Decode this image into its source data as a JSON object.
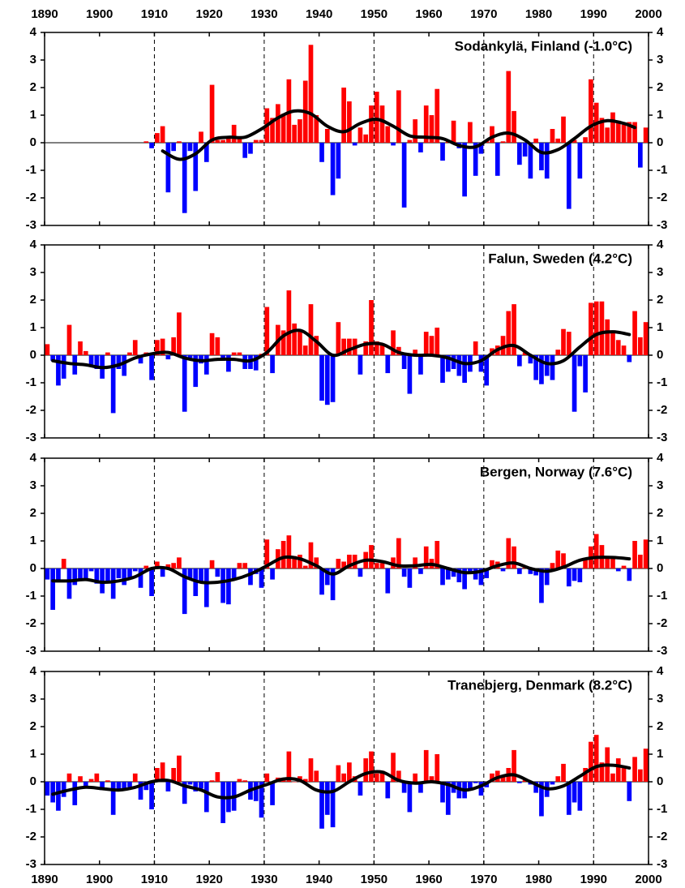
{
  "chart_data": [
    {
      "type": "bar",
      "title": "Sodankylä, Finland (-1.0°C)",
      "pos_color": "#ff0000",
      "neg_color": "#0000ff",
      "x": [
        1890,
        1891,
        1892,
        1893,
        1894,
        1895,
        1896,
        1897,
        1898,
        1899,
        1900,
        1901,
        1902,
        1903,
        1904,
        1905,
        1906,
        1907,
        1908,
        1909,
        1910,
        1911,
        1912,
        1913,
        1914,
        1915,
        1916,
        1917,
        1918,
        1919,
        1920,
        1921,
        1922,
        1923,
        1924,
        1925,
        1926,
        1927,
        1928,
        1929,
        1930,
        1931,
        1932,
        1933,
        1934,
        1935,
        1936,
        1937,
        1938,
        1939,
        1940,
        1941,
        1942,
        1943,
        1944,
        1945,
        1946,
        1947,
        1948,
        1949,
        1950,
        1951,
        1952,
        1953,
        1954,
        1955,
        1956,
        1957,
        1958,
        1959,
        1960,
        1961,
        1962,
        1963,
        1964,
        1965,
        1966,
        1967,
        1968,
        1969,
        1970,
        1971,
        1972,
        1973,
        1974,
        1975,
        1976,
        1977,
        1978,
        1979,
        1980,
        1981,
        1982,
        1983,
        1984,
        1985,
        1986,
        1987,
        1988,
        1989,
        1990,
        1991,
        1992,
        1993,
        1994,
        1995,
        1996,
        1997,
        1998,
        1999
      ],
      "values": [
        null,
        null,
        null,
        null,
        null,
        null,
        null,
        null,
        null,
        null,
        null,
        null,
        null,
        null,
        null,
        null,
        null,
        null,
        0.05,
        -0.2,
        0.35,
        0.6,
        -1.8,
        -0.3,
        0.05,
        -2.55,
        -0.3,
        -1.75,
        0.4,
        -0.7,
        2.1,
        0.1,
        0.1,
        0.2,
        0.65,
        0.2,
        -0.55,
        -0.4,
        0.1,
        0.1,
        1.25,
        0.9,
        1.4,
        1.05,
        2.3,
        0.65,
        0.85,
        2.25,
        3.55,
        1.0,
        -0.7,
        0.5,
        -1.9,
        -1.3,
        2.0,
        1.5,
        -0.1,
        0.55,
        0.3,
        1.35,
        1.85,
        1.35,
        0.6,
        -0.1,
        1.9,
        -2.35,
        0.1,
        0.85,
        -0.35,
        1.35,
        1.0,
        1.95,
        -0.65,
        0.1,
        0.8,
        -0.2,
        -1.95,
        0.75,
        -1.2,
        -0.4,
        0.1,
        0.6,
        -1.2,
        0.05,
        2.6,
        1.15,
        -0.8,
        -0.5,
        -1.3,
        0.15,
        -1.0,
        -1.3,
        0.5,
        0.15,
        0.95,
        -2.4,
        0.1,
        -1.3,
        0.2,
        2.3,
        1.45,
        0.9,
        0.55,
        1.1,
        0.8,
        0.65,
        0.75,
        0.75,
        -0.9,
        0.55
      ],
      "smooth": {
        "color": "#000000",
        "x": [
          1911,
          1914,
          1917,
          1920,
          1923,
          1926,
          1929,
          1932,
          1935,
          1938,
          1941,
          1944,
          1947,
          1950,
          1953,
          1956,
          1959,
          1962,
          1965,
          1968,
          1971,
          1974,
          1977,
          1980,
          1983,
          1986,
          1989,
          1992,
          1995,
          1997
        ],
        "values": [
          -0.3,
          -0.6,
          -0.4,
          0.1,
          0.2,
          0.2,
          0.5,
          0.9,
          1.15,
          1.05,
          0.6,
          0.4,
          0.7,
          0.85,
          0.6,
          0.25,
          0.2,
          0.15,
          -0.1,
          -0.15,
          0.2,
          0.35,
          0.1,
          -0.35,
          -0.25,
          0.15,
          0.6,
          0.8,
          0.7,
          0.55
        ]
      },
      "xlim": [
        1890,
        2000
      ],
      "ylim": [
        -3,
        4
      ],
      "xticks": [
        1890,
        1900,
        1910,
        1920,
        1930,
        1940,
        1950,
        1960,
        1970,
        1980,
        1990,
        2000
      ],
      "xtick_labels": "top",
      "yticks": [
        -3,
        -2,
        -1,
        0,
        1,
        2,
        3,
        4
      ],
      "xgrid": [
        1910,
        1930,
        1950,
        1970,
        1990
      ]
    },
    {
      "type": "bar",
      "title": "Falun, Sweden (4.2°C)",
      "pos_color": "#ff0000",
      "neg_color": "#0000ff",
      "x": [
        1890,
        1891,
        1892,
        1893,
        1894,
        1895,
        1896,
        1897,
        1898,
        1899,
        1900,
        1901,
        1902,
        1903,
        1904,
        1905,
        1906,
        1907,
        1908,
        1909,
        1910,
        1911,
        1912,
        1913,
        1914,
        1915,
        1916,
        1917,
        1918,
        1919,
        1920,
        1921,
        1922,
        1923,
        1924,
        1925,
        1926,
        1927,
        1928,
        1929,
        1930,
        1931,
        1932,
        1933,
        1934,
        1935,
        1936,
        1937,
        1938,
        1939,
        1940,
        1941,
        1942,
        1943,
        1944,
        1945,
        1946,
        1947,
        1948,
        1949,
        1950,
        1951,
        1952,
        1953,
        1954,
        1955,
        1956,
        1957,
        1958,
        1959,
        1960,
        1961,
        1962,
        1963,
        1964,
        1965,
        1966,
        1967,
        1968,
        1969,
        1970,
        1971,
        1972,
        1973,
        1974,
        1975,
        1976,
        1977,
        1978,
        1979,
        1980,
        1981,
        1982,
        1983,
        1984,
        1985,
        1986,
        1987,
        1988,
        1989,
        1990,
        1991,
        1992,
        1993,
        1994,
        1995,
        1996,
        1997,
        1998,
        1999
      ],
      "values": [
        0.4,
        -0.2,
        -1.1,
        -0.85,
        1.1,
        -0.7,
        0.5,
        0.15,
        -0.4,
        -0.5,
        -0.85,
        0.1,
        -2.1,
        -0.5,
        -0.75,
        0.1,
        0.55,
        -0.3,
        0.1,
        -0.9,
        0.55,
        0.6,
        -0.15,
        0.65,
        1.55,
        -2.05,
        -0.1,
        -1.15,
        -0.3,
        -0.7,
        0.8,
        0.65,
        -0.2,
        -0.6,
        0.1,
        0.1,
        -0.5,
        -0.5,
        -0.55,
        0.05,
        1.75,
        -0.65,
        1.1,
        0.9,
        2.35,
        1.15,
        0.9,
        0.35,
        1.85,
        0.7,
        -1.65,
        -1.8,
        -1.7,
        1.2,
        0.6,
        0.6,
        0.6,
        -0.7,
        0.5,
        2.0,
        0.5,
        0.4,
        -0.65,
        0.9,
        0.3,
        -0.5,
        -1.4,
        0.2,
        -0.7,
        0.85,
        0.7,
        1.0,
        -1.0,
        -0.6,
        -0.5,
        -0.75,
        -1.0,
        -0.6,
        0.5,
        -0.6,
        -1.1,
        0.25,
        0.35,
        0.7,
        1.6,
        1.85,
        -0.4,
        0.1,
        -0.3,
        -0.9,
        -1.05,
        -0.75,
        -0.9,
        0.2,
        0.95,
        0.85,
        -2.05,
        -0.4,
        -1.35,
        1.9,
        1.95,
        1.95,
        1.3,
        0.9,
        0.55,
        0.35,
        -0.25,
        1.6,
        0.65,
        1.2
      ],
      "smooth": {
        "color": "#000000",
        "x": [
          1891,
          1894,
          1897,
          1900,
          1903,
          1906,
          1909,
          1912,
          1915,
          1918,
          1921,
          1924,
          1927,
          1930,
          1933,
          1936,
          1939,
          1942,
          1945,
          1948,
          1951,
          1954,
          1957,
          1960,
          1963,
          1966,
          1969,
          1972,
          1975,
          1978,
          1981,
          1984,
          1987,
          1990,
          1993,
          1996
        ],
        "values": [
          -0.2,
          -0.3,
          -0.35,
          -0.45,
          -0.35,
          -0.1,
          0.05,
          0.1,
          -0.1,
          -0.2,
          -0.15,
          -0.15,
          -0.2,
          0.1,
          0.7,
          0.9,
          0.5,
          0.0,
          0.2,
          0.4,
          0.4,
          0.1,
          0.0,
          0.0,
          -0.1,
          -0.3,
          -0.2,
          0.2,
          0.35,
          0.0,
          -0.3,
          -0.2,
          0.3,
          0.75,
          0.85,
          0.75
        ]
      },
      "xlim": [
        1890,
        2000
      ],
      "ylim": [
        -3,
        4
      ],
      "xticks": [
        1890,
        1900,
        1910,
        1920,
        1930,
        1940,
        1950,
        1960,
        1970,
        1980,
        1990,
        2000
      ],
      "xtick_labels": "none",
      "yticks": [
        -3,
        -2,
        -1,
        0,
        1,
        2,
        3,
        4
      ],
      "xgrid": [
        1910,
        1930,
        1950,
        1970,
        1990
      ]
    },
    {
      "type": "bar",
      "title": "Bergen, Norway (7.6°C)",
      "pos_color": "#ff0000",
      "neg_color": "#0000ff",
      "x": [
        1890,
        1891,
        1892,
        1893,
        1894,
        1895,
        1896,
        1897,
        1898,
        1899,
        1900,
        1901,
        1902,
        1903,
        1904,
        1905,
        1906,
        1907,
        1908,
        1909,
        1910,
        1911,
        1912,
        1913,
        1914,
        1915,
        1916,
        1917,
        1918,
        1919,
        1920,
        1921,
        1922,
        1923,
        1924,
        1925,
        1926,
        1927,
        1928,
        1929,
        1930,
        1931,
        1932,
        1933,
        1934,
        1935,
        1936,
        1937,
        1938,
        1939,
        1940,
        1941,
        1942,
        1943,
        1944,
        1945,
        1946,
        1947,
        1948,
        1949,
        1950,
        1951,
        1952,
        1953,
        1954,
        1955,
        1956,
        1957,
        1958,
        1959,
        1960,
        1961,
        1962,
        1963,
        1964,
        1965,
        1966,
        1967,
        1968,
        1969,
        1970,
        1971,
        1972,
        1973,
        1974,
        1975,
        1976,
        1977,
        1978,
        1979,
        1980,
        1981,
        1982,
        1983,
        1984,
        1985,
        1986,
        1987,
        1988,
        1989,
        1990,
        1991,
        1992,
        1993,
        1994,
        1995,
        1996,
        1997,
        1998,
        1999
      ],
      "values": [
        -0.4,
        -1.5,
        -0.5,
        0.35,
        -1.1,
        -0.6,
        -0.4,
        -0.45,
        -0.1,
        -0.55,
        -0.9,
        -0.45,
        -1.1,
        -0.35,
        -0.6,
        -0.35,
        -0.1,
        -0.7,
        0.1,
        -1.0,
        0.25,
        -0.3,
        0.15,
        0.2,
        0.4,
        -1.65,
        -0.35,
        -1.0,
        -0.5,
        -1.4,
        0.3,
        -0.3,
        -1.25,
        -1.3,
        -0.4,
        0.2,
        0.2,
        -0.6,
        -0.2,
        -0.7,
        1.05,
        -0.4,
        0.7,
        1.0,
        1.2,
        0.45,
        0.5,
        0.1,
        0.95,
        0.4,
        -0.95,
        -0.6,
        -1.15,
        0.35,
        0.25,
        0.5,
        0.5,
        -0.3,
        0.6,
        0.85,
        0.2,
        0.2,
        -0.9,
        0.4,
        1.1,
        -0.3,
        -0.7,
        0.4,
        -0.2,
        0.8,
        0.35,
        1.0,
        -0.6,
        -0.4,
        -0.3,
        -0.5,
        -0.75,
        -0.2,
        -0.4,
        -0.6,
        -0.35,
        0.3,
        0.25,
        -0.1,
        1.1,
        0.8,
        -0.2,
        0.1,
        -0.2,
        -0.25,
        -1.25,
        -0.6,
        0.2,
        0.65,
        0.55,
        -0.65,
        -0.45,
        -0.5,
        0.35,
        0.8,
        1.25,
        0.85,
        0.4,
        0.4,
        -0.1,
        0.1,
        -0.45,
        1.0,
        0.5,
        1.05
      ],
      "smooth": {
        "color": "#000000",
        "x": [
          1891,
          1894,
          1897,
          1900,
          1903,
          1906,
          1909,
          1912,
          1915,
          1918,
          1921,
          1924,
          1927,
          1930,
          1933,
          1936,
          1939,
          1942,
          1945,
          1948,
          1951,
          1954,
          1957,
          1960,
          1963,
          1966,
          1969,
          1972,
          1975,
          1978,
          1981,
          1984,
          1987,
          1990,
          1993,
          1996
        ],
        "values": [
          -0.45,
          -0.45,
          -0.4,
          -0.5,
          -0.45,
          -0.3,
          0.0,
          0.0,
          -0.3,
          -0.5,
          -0.5,
          -0.4,
          -0.2,
          0.1,
          0.4,
          0.35,
          0.1,
          -0.2,
          0.1,
          0.3,
          0.25,
          0.1,
          0.1,
          0.15,
          0.0,
          -0.15,
          -0.1,
          0.1,
          0.2,
          0.0,
          -0.1,
          0.05,
          0.3,
          0.4,
          0.4,
          0.35
        ]
      },
      "xlim": [
        1890,
        2000
      ],
      "ylim": [
        -3,
        4
      ],
      "xticks": [
        1890,
        1900,
        1910,
        1920,
        1930,
        1940,
        1950,
        1960,
        1970,
        1980,
        1990,
        2000
      ],
      "xtick_labels": "none",
      "yticks": [
        -3,
        -2,
        -1,
        0,
        1,
        2,
        3,
        4
      ],
      "xgrid": [
        1910,
        1930,
        1950,
        1970,
        1990
      ]
    },
    {
      "type": "bar",
      "title": "Tranebjerg, Denmark (8.2°C)",
      "pos_color": "#ff0000",
      "neg_color": "#0000ff",
      "x": [
        1890,
        1891,
        1892,
        1893,
        1894,
        1895,
        1896,
        1897,
        1898,
        1899,
        1900,
        1901,
        1902,
        1903,
        1904,
        1905,
        1906,
        1907,
        1908,
        1909,
        1910,
        1911,
        1912,
        1913,
        1914,
        1915,
        1916,
        1917,
        1918,
        1919,
        1920,
        1921,
        1922,
        1923,
        1924,
        1925,
        1926,
        1927,
        1928,
        1929,
        1930,
        1931,
        1932,
        1933,
        1934,
        1935,
        1936,
        1937,
        1938,
        1939,
        1940,
        1941,
        1942,
        1943,
        1944,
        1945,
        1946,
        1947,
        1948,
        1949,
        1950,
        1951,
        1952,
        1953,
        1954,
        1955,
        1956,
        1957,
        1958,
        1959,
        1960,
        1961,
        1962,
        1963,
        1964,
        1965,
        1966,
        1967,
        1968,
        1969,
        1970,
        1971,
        1972,
        1973,
        1974,
        1975,
        1976,
        1977,
        1978,
        1979,
        1980,
        1981,
        1982,
        1983,
        1984,
        1985,
        1986,
        1987,
        1988,
        1989,
        1990,
        1991,
        1992,
        1993,
        1994,
        1995,
        1996,
        1997,
        1998,
        1999
      ],
      "values": [
        -0.5,
        -0.75,
        -1.05,
        -0.55,
        0.3,
        -0.85,
        0.2,
        -0.2,
        0.1,
        0.3,
        -0.3,
        0.05,
        -1.2,
        -0.25,
        -0.3,
        -0.2,
        0.3,
        -0.65,
        -0.3,
        -1.0,
        0.5,
        0.7,
        -0.35,
        0.5,
        0.95,
        -0.8,
        -0.1,
        -0.35,
        -0.25,
        -1.1,
        0.05,
        0.35,
        -1.5,
        -1.1,
        -1.05,
        0.1,
        0.05,
        -0.65,
        -0.7,
        -1.3,
        0.3,
        -0.85,
        0.15,
        0.15,
        1.1,
        0.0,
        0.2,
        0.1,
        0.85,
        0.4,
        -1.7,
        -1.2,
        -1.65,
        0.6,
        0.3,
        0.7,
        0.2,
        -0.5,
        0.85,
        1.1,
        0.3,
        0.4,
        -0.6,
        1.05,
        0.4,
        -0.4,
        -1.1,
        0.3,
        -0.4,
        1.15,
        0.2,
        1.0,
        -0.75,
        -1.2,
        -0.4,
        -0.6,
        -0.6,
        -0.25,
        -0.05,
        -0.5,
        -0.2,
        0.3,
        0.4,
        0.25,
        0.5,
        1.15,
        -0.05,
        0.1,
        -0.1,
        -0.4,
        -1.25,
        -0.55,
        -0.1,
        0.2,
        0.65,
        -1.2,
        -0.75,
        -1.05,
        0.5,
        1.45,
        1.7,
        0.7,
        1.25,
        0.3,
        0.85,
        0.5,
        -0.7,
        0.9,
        0.45,
        1.2
      ],
      "smooth": {
        "color": "#000000",
        "x": [
          1891,
          1894,
          1897,
          1900,
          1903,
          1906,
          1909,
          1912,
          1915,
          1918,
          1921,
          1924,
          1927,
          1930,
          1933,
          1936,
          1939,
          1942,
          1945,
          1948,
          1951,
          1954,
          1957,
          1960,
          1963,
          1966,
          1969,
          1972,
          1975,
          1978,
          1981,
          1984,
          1987,
          1990,
          1993,
          1996
        ],
        "values": [
          -0.45,
          -0.3,
          -0.2,
          -0.25,
          -0.3,
          -0.2,
          0.0,
          0.05,
          -0.15,
          -0.3,
          -0.55,
          -0.55,
          -0.3,
          -0.1,
          0.1,
          0.05,
          -0.3,
          -0.35,
          0.0,
          0.3,
          0.35,
          0.05,
          -0.05,
          0.0,
          -0.1,
          -0.3,
          -0.15,
          0.15,
          0.25,
          0.0,
          -0.25,
          -0.15,
          0.2,
          0.55,
          0.6,
          0.5
        ]
      },
      "xlim": [
        1890,
        2000
      ],
      "ylim": [
        -3,
        4
      ],
      "xticks": [
        1890,
        1900,
        1910,
        1920,
        1930,
        1940,
        1950,
        1960,
        1970,
        1980,
        1990,
        2000
      ],
      "xtick_labels": "bottom",
      "yticks": [
        -3,
        -2,
        -1,
        0,
        1,
        2,
        3,
        4
      ],
      "xgrid": [
        1910,
        1930,
        1950,
        1970,
        1990
      ]
    }
  ]
}
